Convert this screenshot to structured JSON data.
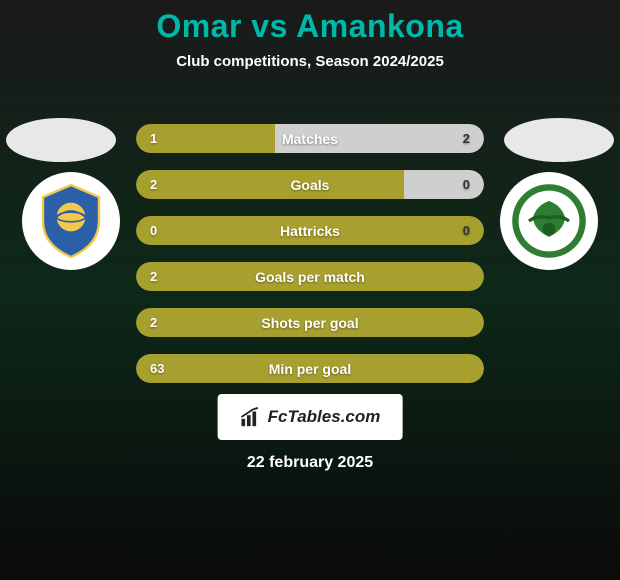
{
  "title_color": "#00b8a9",
  "bar_primary_color": "#a8a02e",
  "bar_secondary_color": "#cfcfcf",
  "background_gradient": [
    "#1a1a1a",
    "#0d2818",
    "#0a0a0a"
  ],
  "header": {
    "player_left": "Omar",
    "vs": "vs",
    "player_right": "Amankona",
    "subtitle": "Club competitions, Season 2024/2025"
  },
  "stats": [
    {
      "label": "Matches",
      "left_value": "1",
      "right_value": "2",
      "left_pct": 40,
      "right_pct": 60,
      "left_color": "#a8a02e",
      "right_color": "#cfcfcf",
      "show_right": true
    },
    {
      "label": "Goals",
      "left_value": "2",
      "right_value": "0",
      "left_pct": 77,
      "right_pct": 23,
      "left_color": "#a8a02e",
      "right_color": "#cfcfcf",
      "show_right": true
    },
    {
      "label": "Hattricks",
      "left_value": "0",
      "right_value": "0",
      "left_pct": 100,
      "right_pct": 0,
      "left_color": "#a8a02e",
      "right_color": "#cfcfcf",
      "show_right": true
    },
    {
      "label": "Goals per match",
      "left_value": "2",
      "right_value": "",
      "left_pct": 100,
      "right_pct": 0,
      "left_color": "#a8a02e",
      "right_color": "#a8a02e",
      "show_right": false
    },
    {
      "label": "Shots per goal",
      "left_value": "2",
      "right_value": "",
      "left_pct": 100,
      "right_pct": 0,
      "left_color": "#a8a02e",
      "right_color": "#a8a02e",
      "show_right": false
    },
    {
      "label": "Min per goal",
      "left_value": "63",
      "right_value": "",
      "left_pct": 100,
      "right_pct": 0,
      "left_color": "#a8a02e",
      "right_color": "#a8a02e",
      "show_right": false
    }
  ],
  "footer": {
    "brand": "FcTables.com",
    "date": "22 february 2025"
  },
  "crests": {
    "left": {
      "primary": "#2b5fa8",
      "secondary": "#f2c94c",
      "accent": "#ffffff"
    },
    "right": {
      "primary": "#2e7d32",
      "secondary": "#ffffff",
      "accent": "#1b5e20"
    }
  }
}
